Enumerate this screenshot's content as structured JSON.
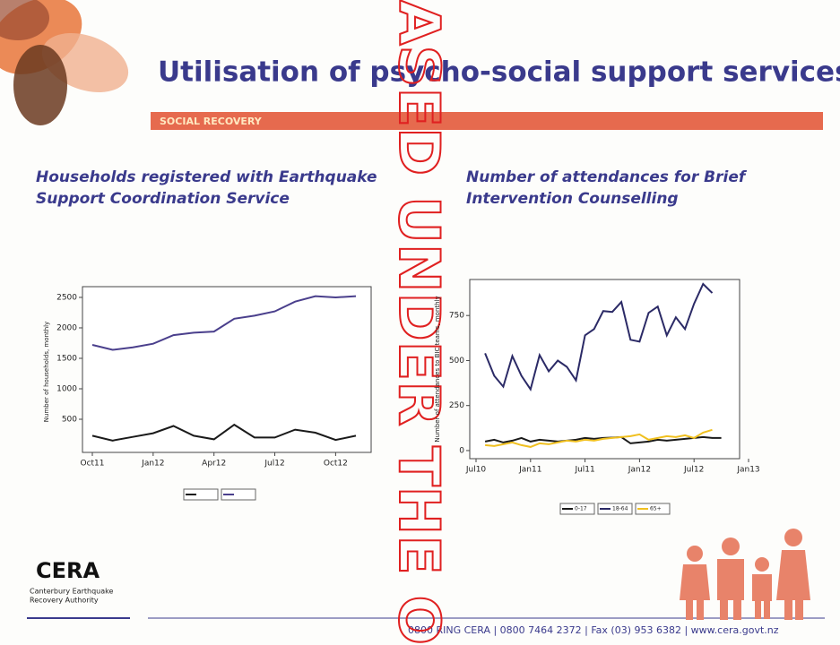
{
  "title": "Utilisation of psycho-social support services",
  "section": "SOCIAL RECOVERY",
  "watermark": "ASED UNDER THE O",
  "logo": {
    "name": "CERA",
    "line1": "Canterbury Earthquake",
    "line2": "Recovery Authority"
  },
  "footer": "0800 RING CERA  |  0800 7464 2372  |  Fax (03) 953 6382  |  www.cera.govt.nz",
  "chart_data": [
    {
      "type": "line",
      "title": "Households registered with Earthquake Support Coordination Service",
      "y_label": "Number of households, monthly",
      "categories": [
        "Oct11",
        null,
        null,
        "Jan12",
        null,
        null,
        "Apr12",
        null,
        null,
        "Jul12",
        null,
        null,
        "Oct12",
        null
      ],
      "series": [
        {
          "color": "#1a1a1a",
          "values": [
            230,
            150,
            210,
            270,
            390,
            230,
            170,
            410,
            200,
            200,
            330,
            280,
            160,
            230
          ]
        },
        {
          "color": "#4a3f8c",
          "values": [
            1720,
            1640,
            1680,
            1740,
            1880,
            1920,
            1940,
            2150,
            2200,
            2270,
            2430,
            2520,
            2500,
            2520
          ]
        }
      ],
      "ylim": [
        -44,
        2676
      ],
      "yticks": [
        500,
        1000,
        1500,
        2000,
        2500
      ]
    },
    {
      "type": "line",
      "title": "Number of attendances for Brief Intervention Counselling",
      "y_label": "Number of attendances to BIC teams, monthly",
      "categories": [
        "Jul10",
        null,
        null,
        null,
        null,
        null,
        "Jan11",
        null,
        null,
        null,
        null,
        null,
        "Jul11",
        null,
        null,
        null,
        null,
        null,
        "Jan12",
        null,
        null,
        null,
        null,
        null,
        "Jul12",
        null,
        null,
        null,
        null,
        null,
        "Jan13"
      ],
      "series": [
        {
          "name": "0-17",
          "color": "#1a1a1a",
          "values": [
            null,
            50,
            60,
            45,
            55,
            70,
            50,
            60,
            55,
            50,
            55,
            60,
            70,
            65,
            70,
            72,
            75,
            40,
            45,
            50,
            60,
            55,
            60,
            65,
            70,
            75,
            70,
            70,
            null,
            null,
            null
          ]
        },
        {
          "name": "18-64",
          "color": "#2b2a66",
          "values": [
            null,
            540,
            415,
            355,
            525,
            415,
            340,
            530,
            440,
            500,
            465,
            390,
            640,
            675,
            775,
            770,
            825,
            615,
            605,
            765,
            800,
            640,
            740,
            675,
            815,
            925,
            875,
            null,
            null,
            null,
            null
          ]
        },
        {
          "name": "65+",
          "color": "#f0c020",
          "values": [
            null,
            30,
            25,
            35,
            45,
            30,
            20,
            40,
            35,
            45,
            55,
            50,
            60,
            55,
            65,
            70,
            75,
            80,
            90,
            60,
            70,
            80,
            75,
            85,
            70,
            100,
            115,
            null,
            null,
            null,
            null
          ]
        }
      ],
      "ylim": [
        -45,
        950
      ],
      "yticks": [
        0,
        250,
        500,
        750
      ]
    }
  ]
}
